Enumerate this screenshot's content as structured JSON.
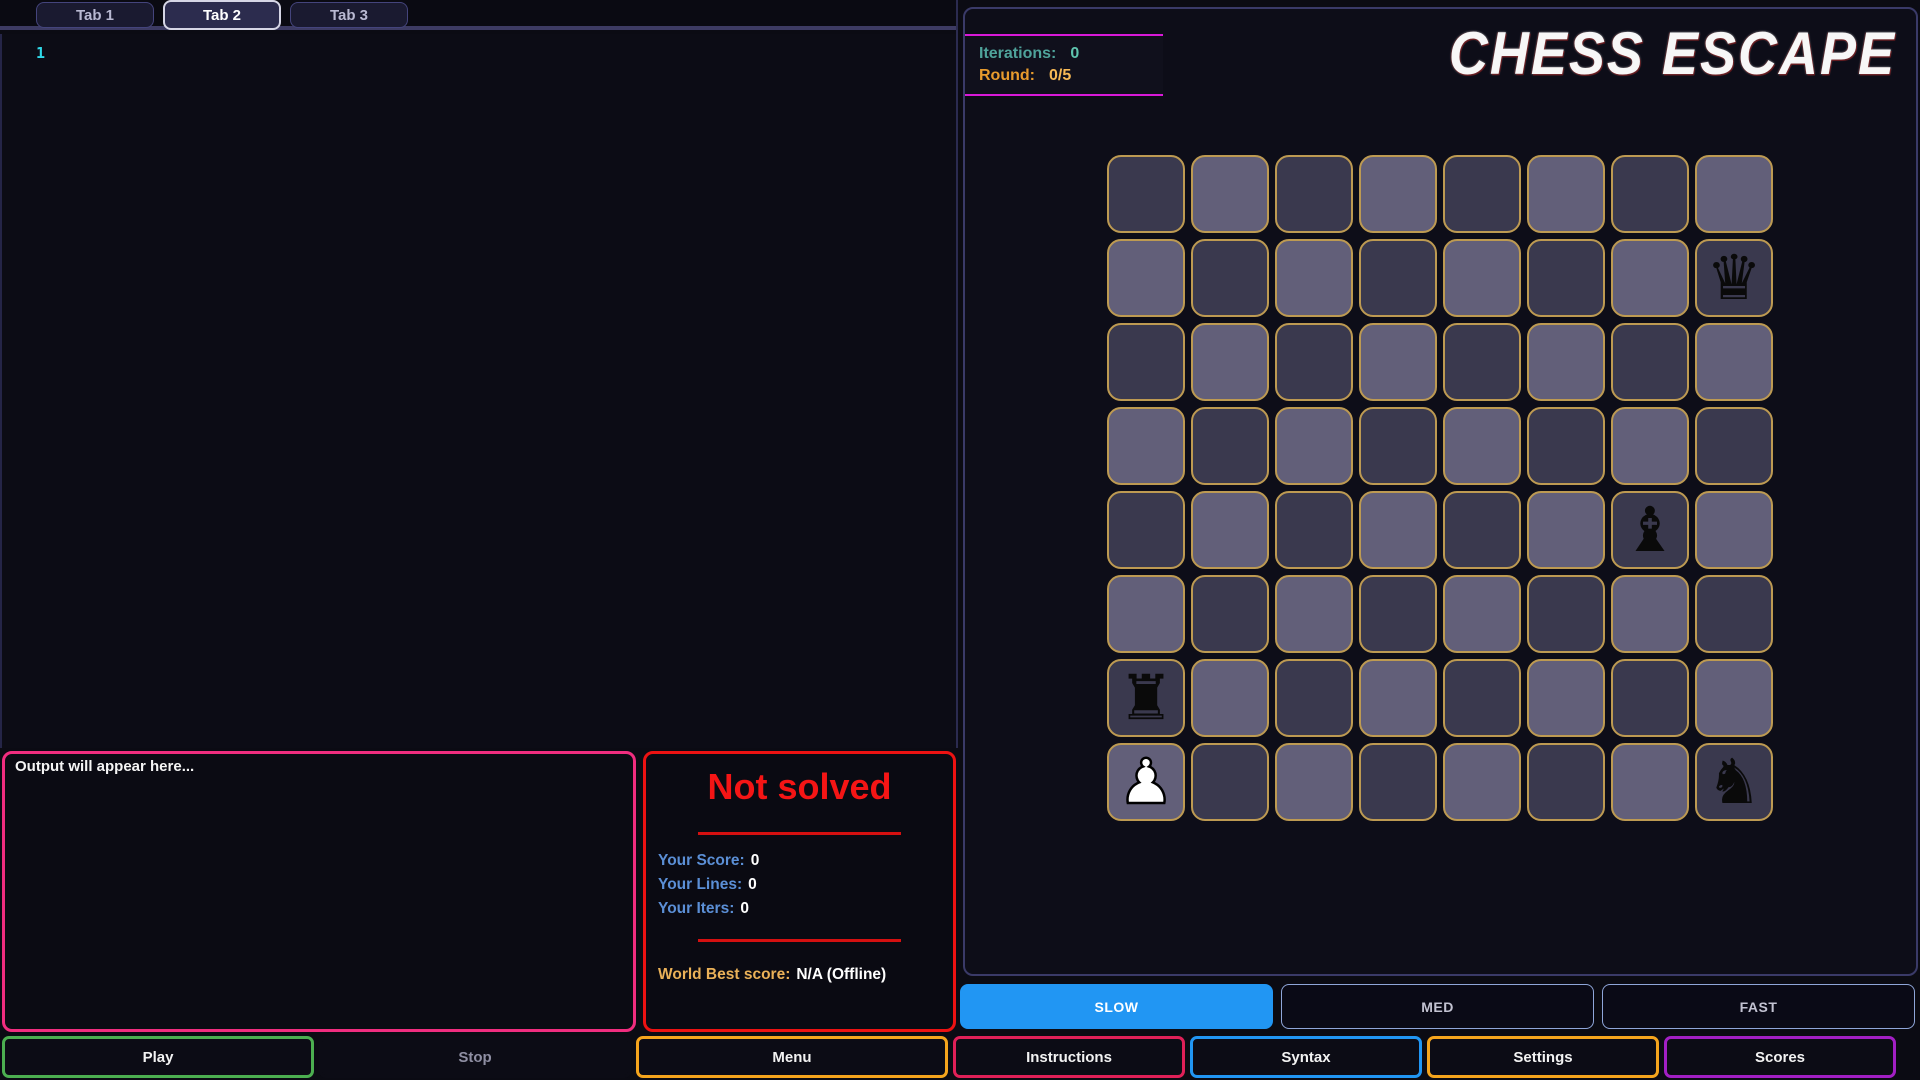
{
  "app": {
    "title": "CHESS ESCAPE"
  },
  "tabs": {
    "items": [
      {
        "label": "Tab 1",
        "active": false
      },
      {
        "label": "Tab 2",
        "active": true
      },
      {
        "label": "Tab 3",
        "active": false
      }
    ]
  },
  "editor": {
    "line_numbers": [
      "1"
    ]
  },
  "status": {
    "iterations_label": "Iterations:",
    "iterations_value": "0",
    "round_label": "Round:",
    "round_value": "0/5"
  },
  "board": {
    "rows": 8,
    "cols": 8,
    "square_colors": {
      "dark": "#3a394e",
      "light": "#625f79",
      "border": "#bd9a52"
    },
    "pieces": [
      {
        "row": 1,
        "col": 7,
        "name": "black-queen",
        "glyph": "♛",
        "side": "black"
      },
      {
        "row": 4,
        "col": 6,
        "name": "black-bishop",
        "glyph": "♝",
        "side": "black"
      },
      {
        "row": 6,
        "col": 0,
        "name": "black-rook",
        "glyph": "♜",
        "side": "black"
      },
      {
        "row": 7,
        "col": 0,
        "name": "white-pawn",
        "glyph": "♟",
        "side": "white"
      },
      {
        "row": 7,
        "col": 7,
        "name": "black-knight",
        "glyph": "♞",
        "side": "black"
      }
    ]
  },
  "output_panel": {
    "placeholder": "Output will appear here..."
  },
  "score_panel": {
    "title": "Not solved",
    "stats": [
      {
        "label": "Your Score:",
        "value": "0"
      },
      {
        "label": "Your Lines:",
        "value": "0"
      },
      {
        "label": "Your Iters:",
        "value": "0"
      }
    ],
    "world_best": {
      "label": "World Best score:",
      "value": "N/A (Offline)"
    }
  },
  "speed_controls": {
    "items": [
      {
        "label": "SLOW",
        "active": true
      },
      {
        "label": "MED",
        "active": false
      },
      {
        "label": "FAST",
        "active": false
      }
    ]
  },
  "action_buttons": {
    "items": [
      {
        "label": "Play",
        "accent": "#4caf50",
        "group": "wide"
      },
      {
        "label": "Stop",
        "accent": "",
        "group": "wide"
      },
      {
        "label": "Menu",
        "accent": "#f5a51d",
        "group": "wide"
      },
      {
        "label": "Instructions",
        "accent": "#e02058",
        "group": "narrow"
      },
      {
        "label": "Syntax",
        "accent": "#2196f3",
        "group": "narrow"
      },
      {
        "label": "Settings",
        "accent": "#f5a51d",
        "group": "narrow"
      },
      {
        "label": "Scores",
        "accent": "#a21fc4",
        "group": "narrow"
      }
    ]
  }
}
